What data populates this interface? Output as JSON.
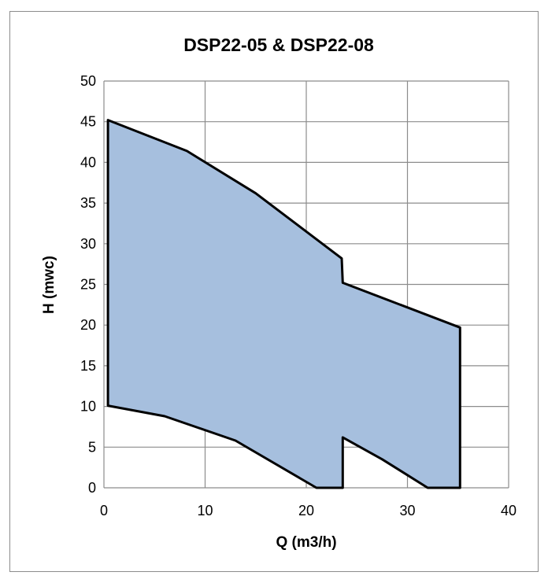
{
  "chart_data": {
    "type": "area",
    "title": "DSP22-05 & DSP22-08",
    "xlabel": "Q (m3/h)",
    "ylabel": "H (mwc)",
    "xlim": [
      0,
      40
    ],
    "ylim": [
      0,
      50
    ],
    "xticks": [
      0,
      10,
      20,
      30,
      40
    ],
    "yticks": [
      0,
      5,
      10,
      15,
      20,
      25,
      30,
      35,
      40,
      45,
      50
    ],
    "grid": true,
    "fill_color": "#a6bfde",
    "outline_color": "#000000",
    "series": [
      {
        "points": [
          [
            0.4,
            45.2
          ],
          [
            8.2,
            41.4
          ],
          [
            15,
            36.2
          ],
          [
            23.5,
            28.2
          ],
          [
            23.6,
            25.2
          ],
          [
            35.2,
            19.7
          ],
          [
            35.2,
            0
          ],
          [
            32,
            0
          ],
          [
            27.5,
            3.5
          ],
          [
            23.6,
            6.2
          ],
          [
            23.6,
            0
          ],
          [
            21,
            0
          ],
          [
            13,
            5.8
          ],
          [
            6,
            8.8
          ],
          [
            0.4,
            10.1
          ]
        ]
      }
    ]
  }
}
